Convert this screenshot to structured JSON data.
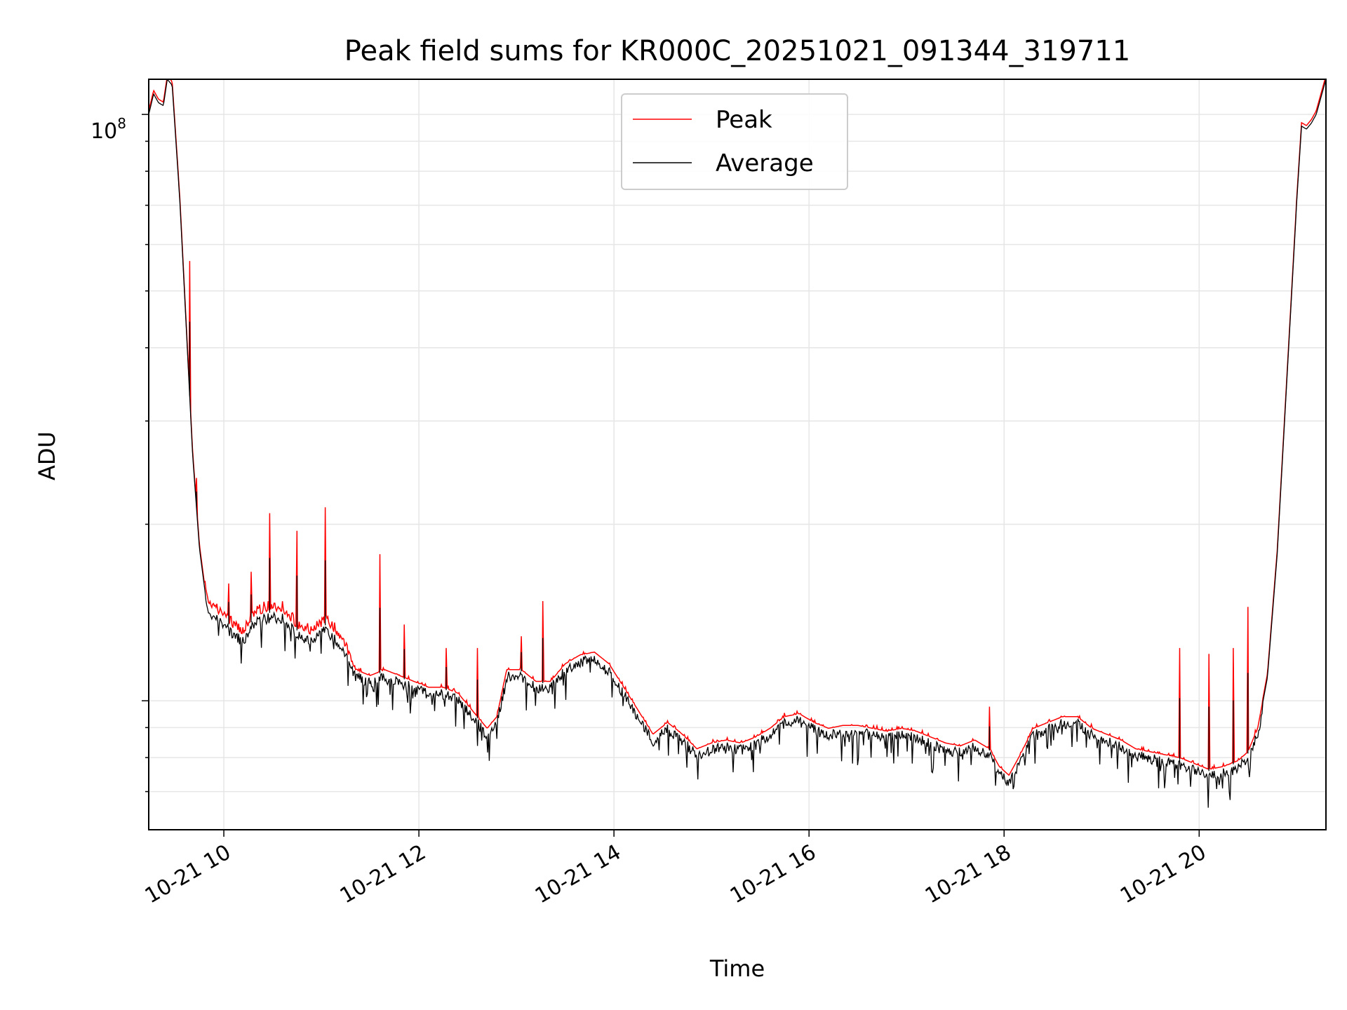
{
  "chart_data": {
    "type": "line",
    "title": "Peak field sums for KR000C_20251021_091344_319711",
    "xlabel": "Time",
    "ylabel": "ADU",
    "y_scale": "log",
    "xlim": [
      9.23,
      21.3
    ],
    "ylim_log10": [
      6.78,
      8.06
    ],
    "x_tick_values": [
      10,
      12,
      14,
      16,
      18,
      20
    ],
    "x_tick_labels": [
      "10-21 10",
      "10-21 12",
      "10-21 14",
      "10-21 16",
      "10-21 18",
      "10-21 20"
    ],
    "y_tick_major_value": 100000000,
    "y_tick_major_base": "10",
    "y_tick_major_exponent": "8",
    "grid": true,
    "legend_position": "upper center",
    "series": [
      {
        "name": "Peak",
        "color": "#ff0000",
        "spikes": [
          {
            "x": 9.65,
            "log10": 7.75
          },
          {
            "x": 9.72,
            "log10": 7.38
          },
          {
            "x": 10.05,
            "log10": 7.2
          },
          {
            "x": 10.28,
            "log10": 7.22
          },
          {
            "x": 10.47,
            "log10": 7.32
          },
          {
            "x": 10.75,
            "log10": 7.29
          },
          {
            "x": 11.04,
            "log10": 7.33
          },
          {
            "x": 11.6,
            "log10": 7.25
          },
          {
            "x": 11.85,
            "log10": 7.13
          },
          {
            "x": 12.28,
            "log10": 7.09
          },
          {
            "x": 12.6,
            "log10": 7.09
          },
          {
            "x": 13.05,
            "log10": 7.11
          },
          {
            "x": 13.27,
            "log10": 7.17
          },
          {
            "x": 17.85,
            "log10": 6.99
          },
          {
            "x": 19.8,
            "log10": 7.09
          },
          {
            "x": 20.1,
            "log10": 7.08
          },
          {
            "x": 20.35,
            "log10": 7.09
          },
          {
            "x": 20.5,
            "log10": 7.16
          }
        ]
      },
      {
        "name": "Average",
        "color": "#000000",
        "points": [
          [
            9.23,
            8.0
          ],
          [
            9.28,
            8.035
          ],
          [
            9.33,
            8.02
          ],
          [
            9.38,
            8.015
          ],
          [
            9.42,
            8.06
          ],
          [
            9.47,
            8.05
          ],
          [
            9.55,
            7.85
          ],
          [
            9.62,
            7.62
          ],
          [
            9.68,
            7.42
          ],
          [
            9.75,
            7.26
          ],
          [
            9.82,
            7.17
          ],
          [
            9.9,
            7.15
          ],
          [
            10.0,
            7.14
          ],
          [
            10.1,
            7.12
          ],
          [
            10.2,
            7.11
          ],
          [
            10.3,
            7.14
          ],
          [
            10.45,
            7.15
          ],
          [
            10.6,
            7.15
          ],
          [
            10.75,
            7.12
          ],
          [
            10.9,
            7.11
          ],
          [
            11.05,
            7.13
          ],
          [
            11.2,
            7.1
          ],
          [
            11.35,
            7.05
          ],
          [
            11.5,
            7.04
          ],
          [
            11.65,
            7.05
          ],
          [
            11.8,
            7.04
          ],
          [
            11.95,
            7.03
          ],
          [
            12.1,
            7.02
          ],
          [
            12.25,
            7.02
          ],
          [
            12.4,
            7.01
          ],
          [
            12.55,
            6.98
          ],
          [
            12.7,
            6.95
          ],
          [
            12.8,
            6.97
          ],
          [
            12.9,
            7.05
          ],
          [
            13.05,
            7.05
          ],
          [
            13.2,
            7.03
          ],
          [
            13.35,
            7.03
          ],
          [
            13.5,
            7.06
          ],
          [
            13.65,
            7.075
          ],
          [
            13.8,
            7.08
          ],
          [
            13.95,
            7.06
          ],
          [
            14.1,
            7.02
          ],
          [
            14.25,
            6.98
          ],
          [
            14.4,
            6.94
          ],
          [
            14.55,
            6.96
          ],
          [
            14.7,
            6.94
          ],
          [
            14.85,
            6.915
          ],
          [
            15.0,
            6.925
          ],
          [
            15.15,
            6.93
          ],
          [
            15.3,
            6.925
          ],
          [
            15.45,
            6.935
          ],
          [
            15.6,
            6.95
          ],
          [
            15.75,
            6.97
          ],
          [
            15.9,
            6.975
          ],
          [
            16.05,
            6.96
          ],
          [
            16.2,
            6.95
          ],
          [
            16.35,
            6.955
          ],
          [
            16.5,
            6.955
          ],
          [
            16.65,
            6.95
          ],
          [
            16.8,
            6.945
          ],
          [
            16.95,
            6.95
          ],
          [
            17.1,
            6.945
          ],
          [
            17.25,
            6.935
          ],
          [
            17.4,
            6.925
          ],
          [
            17.55,
            6.92
          ],
          [
            17.7,
            6.93
          ],
          [
            17.85,
            6.915
          ],
          [
            17.95,
            6.885
          ],
          [
            18.05,
            6.87
          ],
          [
            18.15,
            6.9
          ],
          [
            18.3,
            6.95
          ],
          [
            18.45,
            6.96
          ],
          [
            18.6,
            6.97
          ],
          [
            18.75,
            6.97
          ],
          [
            18.9,
            6.95
          ],
          [
            19.05,
            6.94
          ],
          [
            19.2,
            6.93
          ],
          [
            19.35,
            6.915
          ],
          [
            19.5,
            6.91
          ],
          [
            19.65,
            6.905
          ],
          [
            19.8,
            6.9
          ],
          [
            19.95,
            6.89
          ],
          [
            20.1,
            6.88
          ],
          [
            20.25,
            6.885
          ],
          [
            20.4,
            6.895
          ],
          [
            20.5,
            6.91
          ],
          [
            20.6,
            6.95
          ],
          [
            20.7,
            7.04
          ],
          [
            20.8,
            7.25
          ],
          [
            20.9,
            7.55
          ],
          [
            21.0,
            7.85
          ],
          [
            21.05,
            7.98
          ],
          [
            21.1,
            7.975
          ],
          [
            21.15,
            7.985
          ],
          [
            21.2,
            8.0
          ],
          [
            21.3,
            8.06
          ]
        ]
      }
    ]
  }
}
